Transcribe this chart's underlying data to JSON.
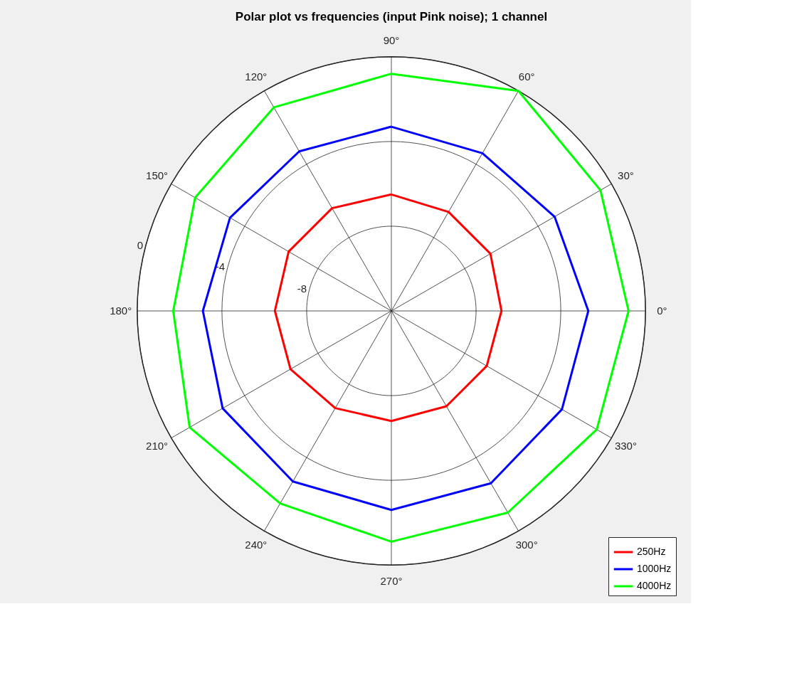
{
  "chart_data": {
    "type": "radar",
    "title": "Polar plot vs frequencies (input Pink noise); 1 channel",
    "categories": [
      "90°",
      "60°",
      "30°",
      "0°",
      "330°",
      "300°",
      "270°",
      "240°",
      "210°",
      "180°",
      "150°",
      "120°"
    ],
    "ylim": [
      -12,
      0
    ],
    "yticks": [
      -8,
      -4,
      0
    ],
    "grid": true,
    "legend": "bottom right",
    "line_style": "solid",
    "marker": "none",
    "series": [
      {
        "name": "250Hz",
        "color": "#ff0000",
        "values": [
          -6.5,
          -6.6,
          -6.6,
          -6.8,
          -6.8,
          -6.8,
          -6.8,
          -6.7,
          -6.5,
          -6.5,
          -6.4,
          -6.4
        ]
      },
      {
        "name": "1000Hz",
        "color": "#0000ff",
        "values": [
          -3.3,
          -3.4,
          -3.1,
          -2.7,
          -2.7,
          -2.6,
          -2.6,
          -2.7,
          -2.8,
          -3.1,
          -3.2,
          -3.3
        ]
      },
      {
        "name": "4000Hz",
        "color": "#00ff00",
        "values": [
          -0.8,
          0,
          -0.6,
          -0.8,
          -0.8,
          -1.0,
          -1.1,
          -1.5,
          -1.0,
          -1.7,
          -1.3,
          -0.9
        ]
      }
    ]
  }
}
